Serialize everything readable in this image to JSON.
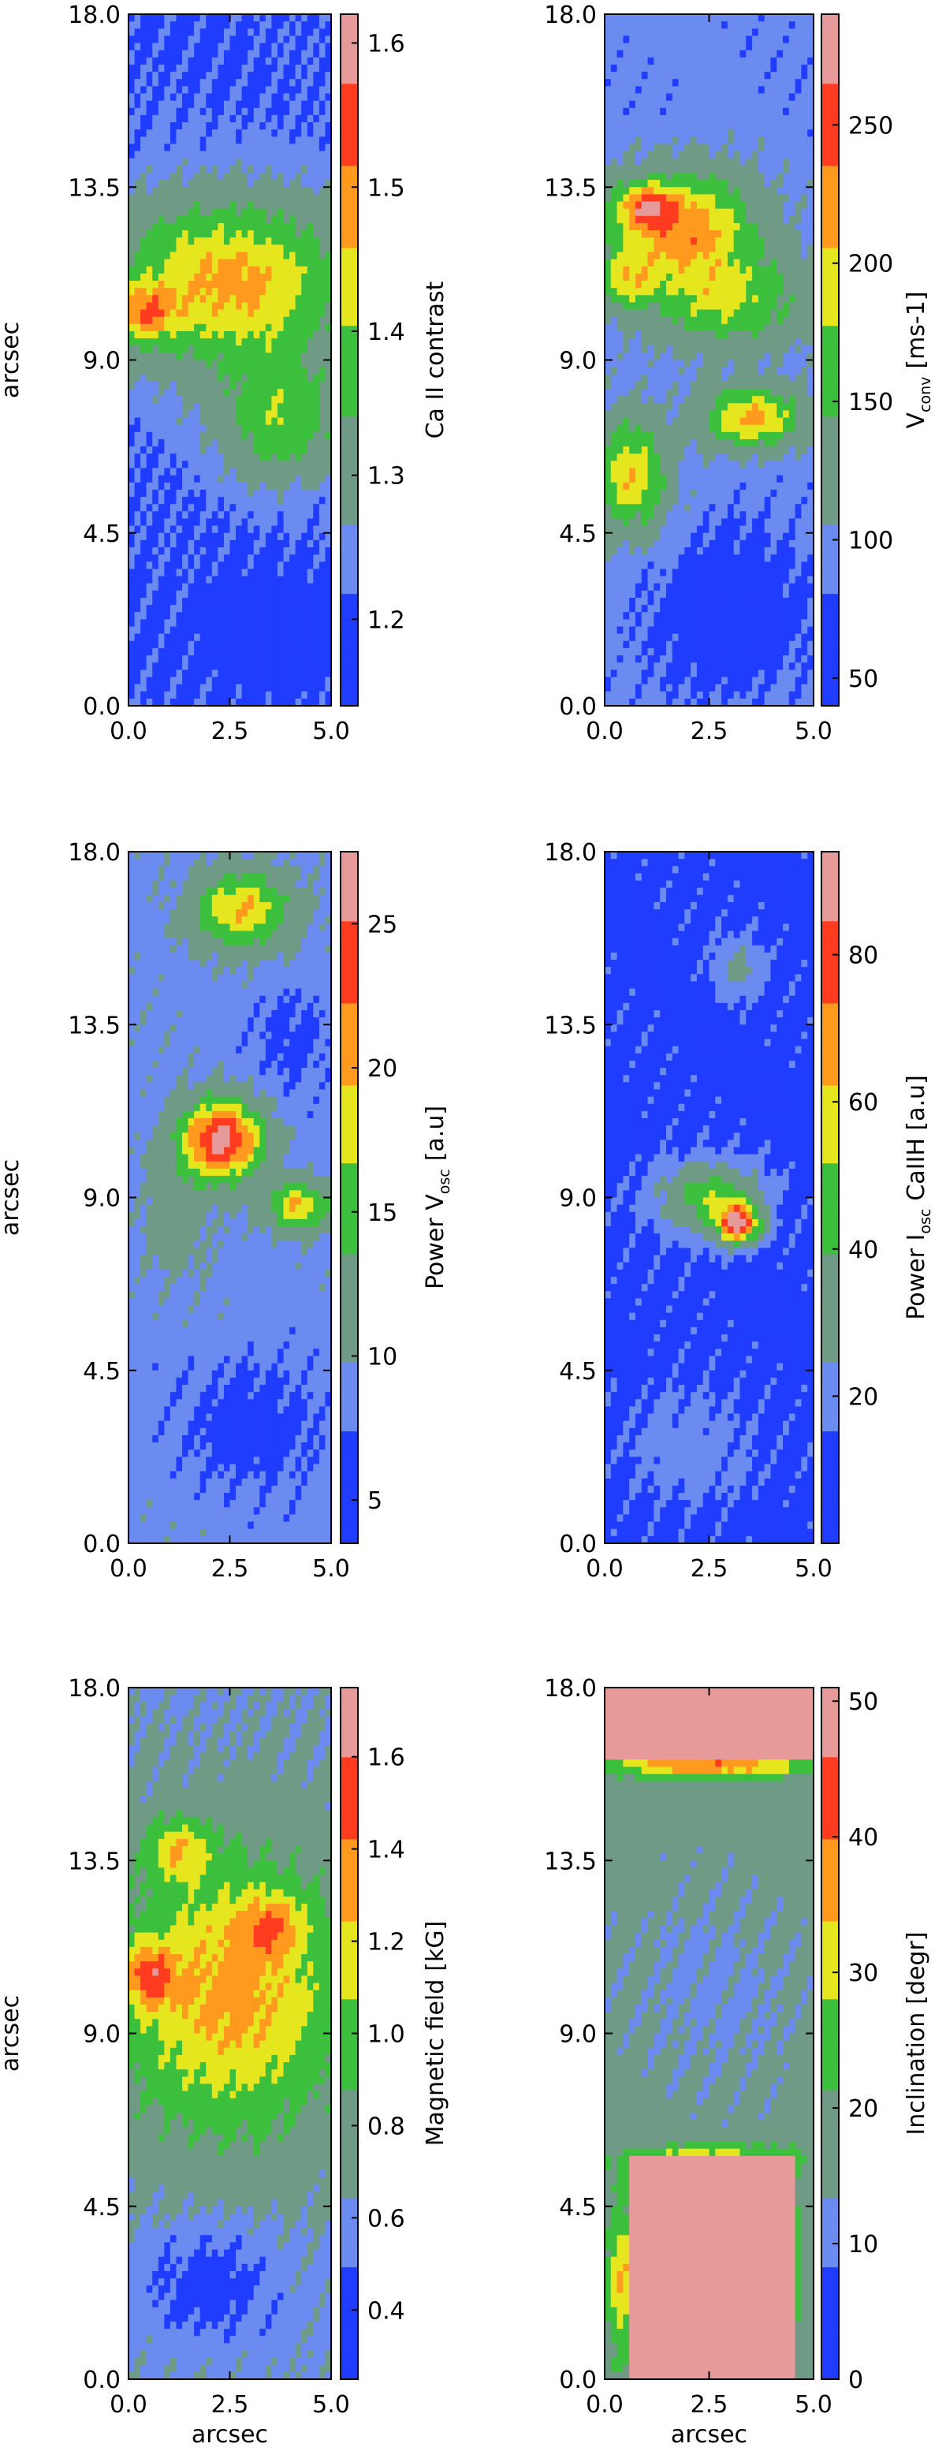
{
  "colors": {
    "blue": "#1f3cff",
    "light_blue": "#6b8bf0",
    "gray_green": "#6f9a86",
    "green": "#3cbf3c",
    "yellow": "#e6e61f",
    "orange": "#ff9a1f",
    "red": "#ff3c1f",
    "pink": "#e69a9a",
    "gray": "#c8c8c8"
  },
  "chart_data": [
    {
      "type": "heatmap",
      "panel": "a",
      "xlabel": "",
      "ylabel": "arcsec",
      "xlim": [
        0.0,
        5.0
      ],
      "ylim": [
        0.0,
        18.0
      ],
      "xticks": [
        "0.0",
        "2.5",
        "5.0"
      ],
      "yticks": [
        "0.0",
        "4.5",
        "9.0",
        "13.5",
        "18.0"
      ],
      "colorbar": {
        "label": "Ca II contrast",
        "label_sub": "",
        "label_suffix": "",
        "min": 1.14,
        "max": 1.62,
        "ticks": [
          1.2,
          1.3,
          1.4,
          1.5,
          1.6
        ],
        "tick_labels": [
          "1.2",
          "1.3",
          "1.4",
          "1.5",
          "1.6"
        ]
      },
      "map": {
        "base": 0.15,
        "centers": [
          {
            "x": 2.5,
            "y": 11.0,
            "sx": 3.2,
            "sy": 2.3,
            "a": 0.55
          },
          {
            "x": 3.8,
            "y": 7.3,
            "sx": 1.6,
            "sy": 1.6,
            "a": 0.35
          },
          {
            "x": 0.4,
            "y": 10.2,
            "sx": 0.7,
            "sy": 0.7,
            "a": 0.35
          },
          {
            "x": 3.5,
            "y": 2.0,
            "sx": 1.5,
            "sy": 1.2,
            "a": -0.15
          }
        ]
      }
    },
    {
      "type": "heatmap",
      "panel": "b",
      "xlabel": "",
      "ylabel": "",
      "xlim": [
        0.0,
        5.0
      ],
      "ylim": [
        0.0,
        18.0
      ],
      "xticks": [
        "0.0",
        "2.5",
        "5.0"
      ],
      "yticks": [
        "0.0",
        "4.5",
        "9.0",
        "13.5",
        "18.0"
      ],
      "colorbar": {
        "label": "V",
        "label_sub": "conv",
        "label_suffix": "[ms-1]",
        "min": 40,
        "max": 290,
        "ticks": [
          50,
          100,
          150,
          200,
          250
        ],
        "tick_labels": [
          "50",
          "100",
          "150",
          "200",
          "250"
        ]
      },
      "map": {
        "base": 0.2,
        "centers": [
          {
            "x": 1.8,
            "y": 12.5,
            "sx": 1.8,
            "sy": 1.4,
            "a": 0.55
          },
          {
            "x": 1.0,
            "y": 13.0,
            "sx": 0.6,
            "sy": 0.5,
            "a": 0.35
          },
          {
            "x": 0.5,
            "y": 11.0,
            "sx": 0.6,
            "sy": 0.7,
            "a": 0.3
          },
          {
            "x": 3.5,
            "y": 7.5,
            "sx": 1.2,
            "sy": 0.8,
            "a": 0.5
          },
          {
            "x": 0.6,
            "y": 6.0,
            "sx": 0.9,
            "sy": 1.5,
            "a": 0.45
          },
          {
            "x": 3.0,
            "y": 10.5,
            "sx": 2.0,
            "sy": 1.2,
            "a": 0.35
          },
          {
            "x": 3.0,
            "y": 2.5,
            "sx": 1.8,
            "sy": 2.0,
            "a": -0.15
          }
        ]
      }
    },
    {
      "type": "heatmap",
      "panel": "c",
      "xlabel": "",
      "ylabel": "arcsec",
      "xlim": [
        0.0,
        5.0
      ],
      "ylim": [
        0.0,
        18.0
      ],
      "xticks": [
        "0.0",
        "2.5",
        "5.0"
      ],
      "yticks": [
        "0.0",
        "4.5",
        "9.0",
        "13.5",
        "18.0"
      ],
      "colorbar": {
        "label": "Power V",
        "label_sub": "osc",
        "label_suffix": "[a.u]",
        "min": 3.5,
        "max": 27.5,
        "ticks": [
          5,
          10,
          15,
          20,
          25
        ],
        "tick_labels": [
          "5",
          "10",
          "15",
          "20",
          "25"
        ]
      },
      "map": {
        "base": 0.22,
        "centers": [
          {
            "x": 2.3,
            "y": 10.5,
            "sx": 1.0,
            "sy": 1.0,
            "a": 0.75
          },
          {
            "x": 2.8,
            "y": 16.5,
            "sx": 1.2,
            "sy": 1.0,
            "a": 0.45
          },
          {
            "x": 4.2,
            "y": 8.8,
            "sx": 0.8,
            "sy": 0.6,
            "a": 0.45
          },
          {
            "x": 1.2,
            "y": 8.5,
            "sx": 0.8,
            "sy": 1.5,
            "a": 0.15
          },
          {
            "x": 3.0,
            "y": 3.0,
            "sx": 1.8,
            "sy": 1.8,
            "a": -0.12
          },
          {
            "x": 4.0,
            "y": 13.0,
            "sx": 1.0,
            "sy": 1.5,
            "a": -0.1
          }
        ]
      }
    },
    {
      "type": "heatmap",
      "panel": "d",
      "xlabel": "",
      "ylabel": "",
      "xlim": [
        0.0,
        5.0
      ],
      "ylim": [
        0.0,
        18.0
      ],
      "xticks": [
        "0.0",
        "2.5",
        "5.0"
      ],
      "yticks": [
        "0.0",
        "4.5",
        "9.0",
        "13.5",
        "18.0"
      ],
      "colorbar": {
        "label": "Power I",
        "label_sub": "osc",
        "label_suffix": "CaIIH [a.u]",
        "min": 0,
        "max": 94,
        "ticks": [
          20,
          40,
          60,
          80
        ],
        "tick_labels": [
          "20",
          "40",
          "60",
          "80"
        ]
      },
      "map": {
        "base": 0.12,
        "centers": [
          {
            "x": 3.2,
            "y": 8.3,
            "sx": 0.5,
            "sy": 0.5,
            "a": 0.75
          },
          {
            "x": 2.5,
            "y": 9.0,
            "sx": 1.2,
            "sy": 0.9,
            "a": 0.4
          },
          {
            "x": 3.2,
            "y": 15.0,
            "sx": 0.6,
            "sy": 0.8,
            "a": 0.18
          },
          {
            "x": 2.0,
            "y": 2.5,
            "sx": 1.5,
            "sy": 1.5,
            "a": 0.1
          }
        ]
      }
    },
    {
      "type": "heatmap",
      "panel": "e",
      "xlabel": "arcsec",
      "ylabel": "arcsec",
      "xlim": [
        0.0,
        5.0
      ],
      "ylim": [
        0.0,
        18.0
      ],
      "xticks": [
        "0.0",
        "2.5",
        "5.0"
      ],
      "yticks": [
        "0.0",
        "4.5",
        "9.0",
        "13.5",
        "18.0"
      ],
      "colorbar": {
        "label": "Magnetic field",
        "label_sub": "",
        "label_suffix": "[kG]",
        "min": 0.25,
        "max": 1.75,
        "ticks": [
          0.4,
          0.6,
          0.8,
          1.0,
          1.2,
          1.4,
          1.6
        ],
        "tick_labels": [
          "0.4",
          "0.6",
          "0.8",
          "1.0",
          "1.2",
          "1.4",
          "1.6"
        ]
      },
      "map": {
        "base": 0.25,
        "centers": [
          {
            "x": 2.5,
            "y": 10.0,
            "sx": 3.0,
            "sy": 3.8,
            "a": 0.45
          },
          {
            "x": 0.5,
            "y": 10.5,
            "sx": 0.6,
            "sy": 0.8,
            "a": 0.35
          },
          {
            "x": 1.2,
            "y": 13.8,
            "sx": 0.8,
            "sy": 0.8,
            "a": 0.3
          },
          {
            "x": 3.5,
            "y": 11.8,
            "sx": 0.8,
            "sy": 0.8,
            "a": 0.25
          },
          {
            "x": 2.0,
            "y": 2.5,
            "sx": 1.8,
            "sy": 1.6,
            "a": -0.15
          }
        ]
      }
    },
    {
      "type": "heatmap",
      "panel": "f",
      "xlabel": "arcsec",
      "ylabel": "",
      "xlim": [
        0.0,
        5.0
      ],
      "ylim": [
        0.0,
        18.0
      ],
      "xticks": [
        "0.0",
        "2.5",
        "5.0"
      ],
      "yticks": [
        "0.0",
        "4.5",
        "9.0",
        "13.5",
        "18.0"
      ],
      "colorbar": {
        "label": "Inclination",
        "label_sub": "",
        "label_suffix": "[degr]",
        "min": 0,
        "max": 51,
        "ticks": [
          0,
          10,
          20,
          30,
          40,
          50
        ],
        "tick_labels": [
          "0",
          "10",
          "20",
          "30",
          "40",
          "50"
        ]
      },
      "map": {
        "base": 0.32,
        "saturated": [
          [
            0.0,
            5.0,
            16.2,
            18.0
          ],
          [
            0.6,
            4.6,
            0.0,
            5.8
          ]
        ],
        "centers": [
          {
            "x": 2.5,
            "y": 16.0,
            "sx": 2.5,
            "sy": 0.35,
            "a": 0.45
          },
          {
            "x": 2.5,
            "y": 5.6,
            "sx": 2.0,
            "sy": 0.5,
            "a": 0.4
          },
          {
            "x": 0.4,
            "y": 2.5,
            "sx": 0.35,
            "sy": 2.0,
            "a": 0.35
          },
          {
            "x": 4.3,
            "y": 3.0,
            "sx": 0.35,
            "sy": 2.0,
            "a": 0.4
          },
          {
            "x": 2.5,
            "y": 10.0,
            "sx": 2.5,
            "sy": 3.0,
            "a": -0.08
          }
        ]
      }
    }
  ]
}
